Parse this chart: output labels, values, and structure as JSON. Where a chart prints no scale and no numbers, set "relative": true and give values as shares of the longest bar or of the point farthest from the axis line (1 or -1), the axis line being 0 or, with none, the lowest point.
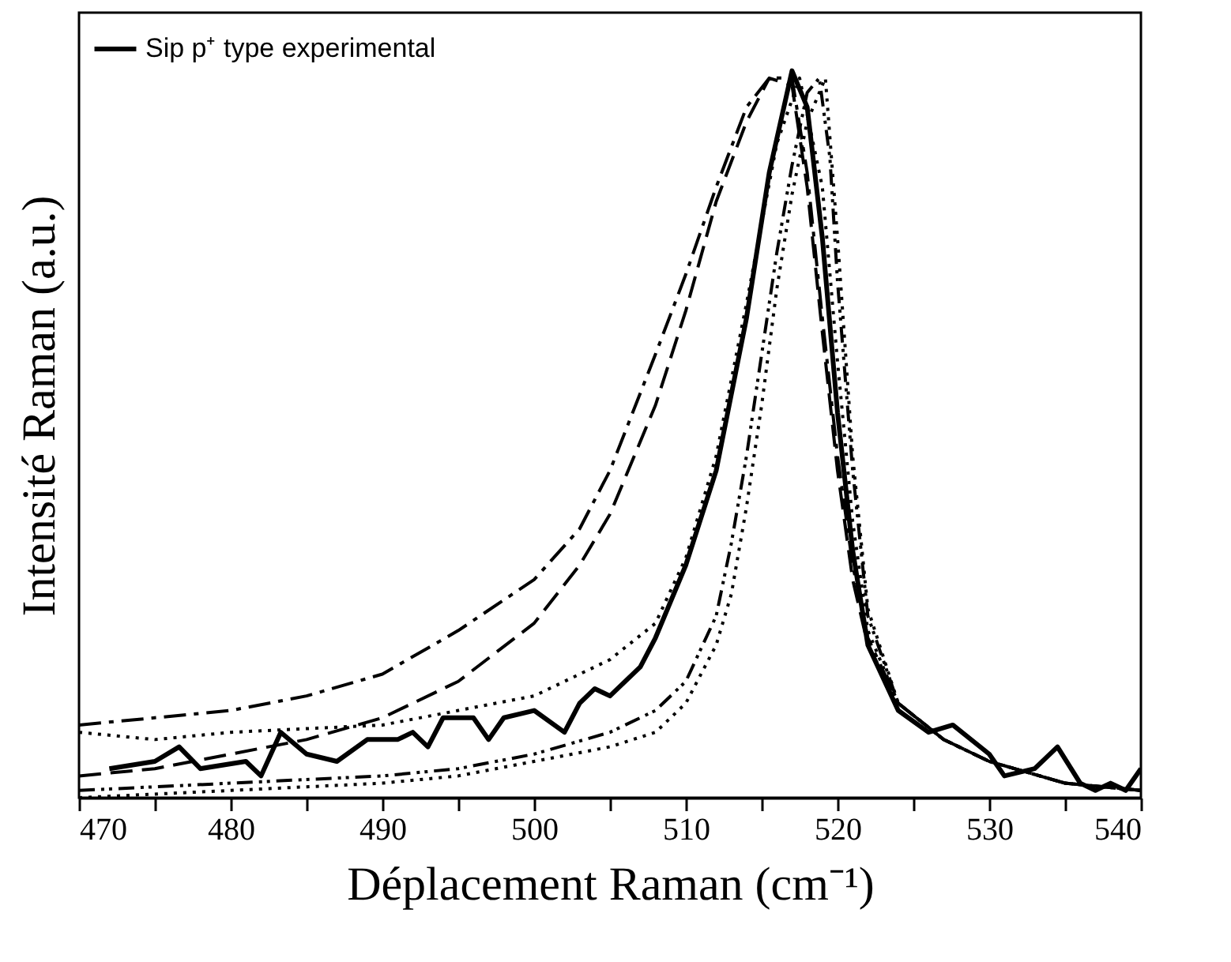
{
  "chart_data": {
    "type": "line",
    "relative": true,
    "xlabel": "Déplacement Raman  (cm⁻¹)",
    "ylabel": "Intensité Raman (a.u.)",
    "xlim": [
      470,
      540
    ],
    "xticks": [
      470,
      {
        "value": 475,
        "label": null
      },
      480,
      {
        "value": 485,
        "label": null
      },
      490,
      {
        "value": 495,
        "label": null
      },
      500,
      {
        "value": 505,
        "label": null
      },
      510,
      {
        "value": 515,
        "label": null
      },
      520,
      {
        "value": 525,
        "label": null
      },
      530,
      {
        "value": 535,
        "label": null
      },
      540
    ],
    "legend": "top left",
    "grid": false,
    "series": [
      {
        "name": "Sip p⁺ type experimental",
        "color": "#000000",
        "line_style": "solid",
        "x": [
          472,
          475,
          476.6,
          478,
          481,
          482,
          483.3,
          485,
          487,
          489,
          491,
          492,
          493,
          494,
          496,
          497,
          498,
          500,
          502,
          503,
          504,
          505,
          507,
          508,
          510,
          512,
          514,
          515.5,
          517,
          518,
          519,
          520,
          521,
          522,
          524,
          526,
          527.6,
          530,
          531,
          533,
          534.5,
          536,
          537,
          538,
          539,
          540
        ],
        "values": [
          0.04,
          0.05,
          0.07,
          0.04,
          0.05,
          0.03,
          0.09,
          0.06,
          0.05,
          0.08,
          0.08,
          0.09,
          0.07,
          0.11,
          0.11,
          0.08,
          0.11,
          0.12,
          0.09,
          0.13,
          0.15,
          0.14,
          0.18,
          0.22,
          0.32,
          0.45,
          0.66,
          0.86,
          1,
          0.95,
          0.77,
          0.53,
          0.34,
          0.21,
          0.12,
          0.09,
          0.1,
          0.06,
          0.03,
          0.04,
          0.07,
          0.02,
          0.01,
          0.02,
          0.01,
          0.04
        ]
      },
      {
        "color": "#000000",
        "line_style": "dashdot",
        "x": [
          470,
          475,
          480,
          485,
          490,
          495,
          500,
          503,
          505,
          508,
          510,
          512,
          514,
          515.5,
          517,
          518,
          519,
          520,
          521,
          522,
          524,
          527,
          530,
          535,
          540
        ],
        "values": [
          0.1,
          0.11,
          0.12,
          0.14,
          0.17,
          0.23,
          0.3,
          0.37,
          0.45,
          0.61,
          0.72,
          0.84,
          0.95,
          0.99,
          0.99,
          0.86,
          0.66,
          0.47,
          0.32,
          0.22,
          0.13,
          0.08,
          0.05,
          0.02,
          0.01
        ]
      },
      {
        "color": "#000000",
        "line_style": "dashed",
        "x": [
          470,
          475,
          480,
          485,
          490,
          495,
          500,
          503,
          505,
          508,
          510,
          512,
          514,
          515.5,
          517,
          518,
          519,
          520,
          521,
          522,
          524,
          527,
          530,
          535,
          540
        ],
        "values": [
          0.03,
          0.04,
          0.06,
          0.08,
          0.11,
          0.16,
          0.24,
          0.32,
          0.39,
          0.54,
          0.67,
          0.82,
          0.93,
          0.99,
          0.98,
          0.84,
          0.64,
          0.45,
          0.3,
          0.21,
          0.13,
          0.08,
          0.05,
          0.02,
          0.01
        ]
      },
      {
        "color": "#000000",
        "line_style": "dotted",
        "x": [
          470,
          475,
          480,
          490,
          495,
          500,
          505,
          508,
          510,
          512,
          514,
          516,
          517.5,
          519,
          520,
          521,
          522,
          524,
          527,
          530,
          535,
          540
        ],
        "values": [
          0.09,
          0.08,
          0.09,
          0.1,
          0.12,
          0.14,
          0.19,
          0.24,
          0.33,
          0.47,
          0.68,
          0.9,
          0.99,
          0.84,
          0.6,
          0.38,
          0.23,
          0.13,
          0.08,
          0.05,
          0.02,
          0.01
        ]
      },
      {
        "color": "#000000",
        "line_style": "dashdotdot",
        "x": [
          470,
          480,
          490,
          495,
          500,
          505,
          508,
          510,
          512,
          513,
          514,
          515,
          516,
          517,
          518,
          518.8,
          519.5,
          520,
          521,
          522,
          524,
          527,
          530,
          535,
          540
        ],
        "values": [
          0.01,
          0.02,
          0.03,
          0.04,
          0.06,
          0.09,
          0.12,
          0.16,
          0.25,
          0.35,
          0.47,
          0.61,
          0.75,
          0.87,
          0.97,
          0.99,
          0.88,
          0.71,
          0.45,
          0.25,
          0.13,
          0.08,
          0.05,
          0.02,
          0.01
        ]
      },
      {
        "color": "#000000",
        "line_style": "dotted",
        "x": [
          470,
          480,
          490,
          495,
          500,
          505,
          508,
          510,
          512,
          513,
          514,
          515,
          516,
          517,
          518,
          519.2,
          520,
          521,
          522,
          524,
          527,
          530,
          535,
          540
        ],
        "values": [
          0.0,
          0.01,
          0.02,
          0.03,
          0.05,
          0.07,
          0.09,
          0.13,
          0.21,
          0.28,
          0.4,
          0.54,
          0.7,
          0.83,
          0.93,
          0.99,
          0.77,
          0.47,
          0.26,
          0.13,
          0.08,
          0.05,
          0.02,
          0.01
        ]
      }
    ]
  }
}
